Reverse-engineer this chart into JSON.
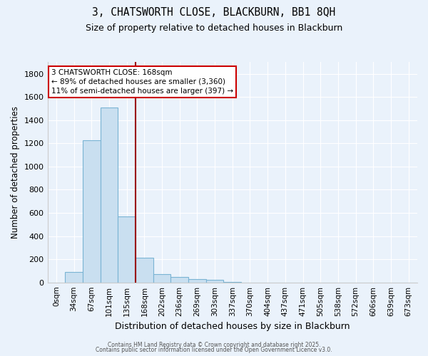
{
  "title_line1": "3, CHATSWORTH CLOSE, BLACKBURN, BB1 8QH",
  "title_line2": "Size of property relative to detached houses in Blackburn",
  "xlabel": "Distribution of detached houses by size in Blackburn",
  "ylabel": "Number of detached properties",
  "bar_labels": [
    "0sqm",
    "34sqm",
    "67sqm",
    "101sqm",
    "135sqm",
    "168sqm",
    "202sqm",
    "236sqm",
    "269sqm",
    "303sqm",
    "337sqm",
    "370sqm",
    "404sqm",
    "437sqm",
    "471sqm",
    "505sqm",
    "538sqm",
    "572sqm",
    "606sqm",
    "639sqm",
    "673sqm"
  ],
  "bar_values": [
    0,
    90,
    1230,
    1510,
    570,
    215,
    70,
    48,
    30,
    20,
    5,
    0,
    0,
    0,
    0,
    0,
    0,
    0,
    0,
    0,
    0
  ],
  "bar_color": "#c9dff0",
  "bar_edge_color": "#7ab4d4",
  "vline_x_index": 5,
  "vline_color": "#990000",
  "ylim": [
    0,
    1900
  ],
  "yticks": [
    0,
    200,
    400,
    600,
    800,
    1000,
    1200,
    1400,
    1600,
    1800
  ],
  "annotation_line1": "3 CHATSWORTH CLOSE: 168sqm",
  "annotation_line2": "← 89% of detached houses are smaller (3,360)",
  "annotation_line3": "11% of semi-detached houses are larger (397) →",
  "bg_color": "#eaf2fb",
  "grid_color": "#ffffff",
  "footer_line1": "Contains HM Land Registry data © Crown copyright and database right 2025.",
  "footer_line2": "Contains public sector information licensed under the Open Government Licence v3.0."
}
